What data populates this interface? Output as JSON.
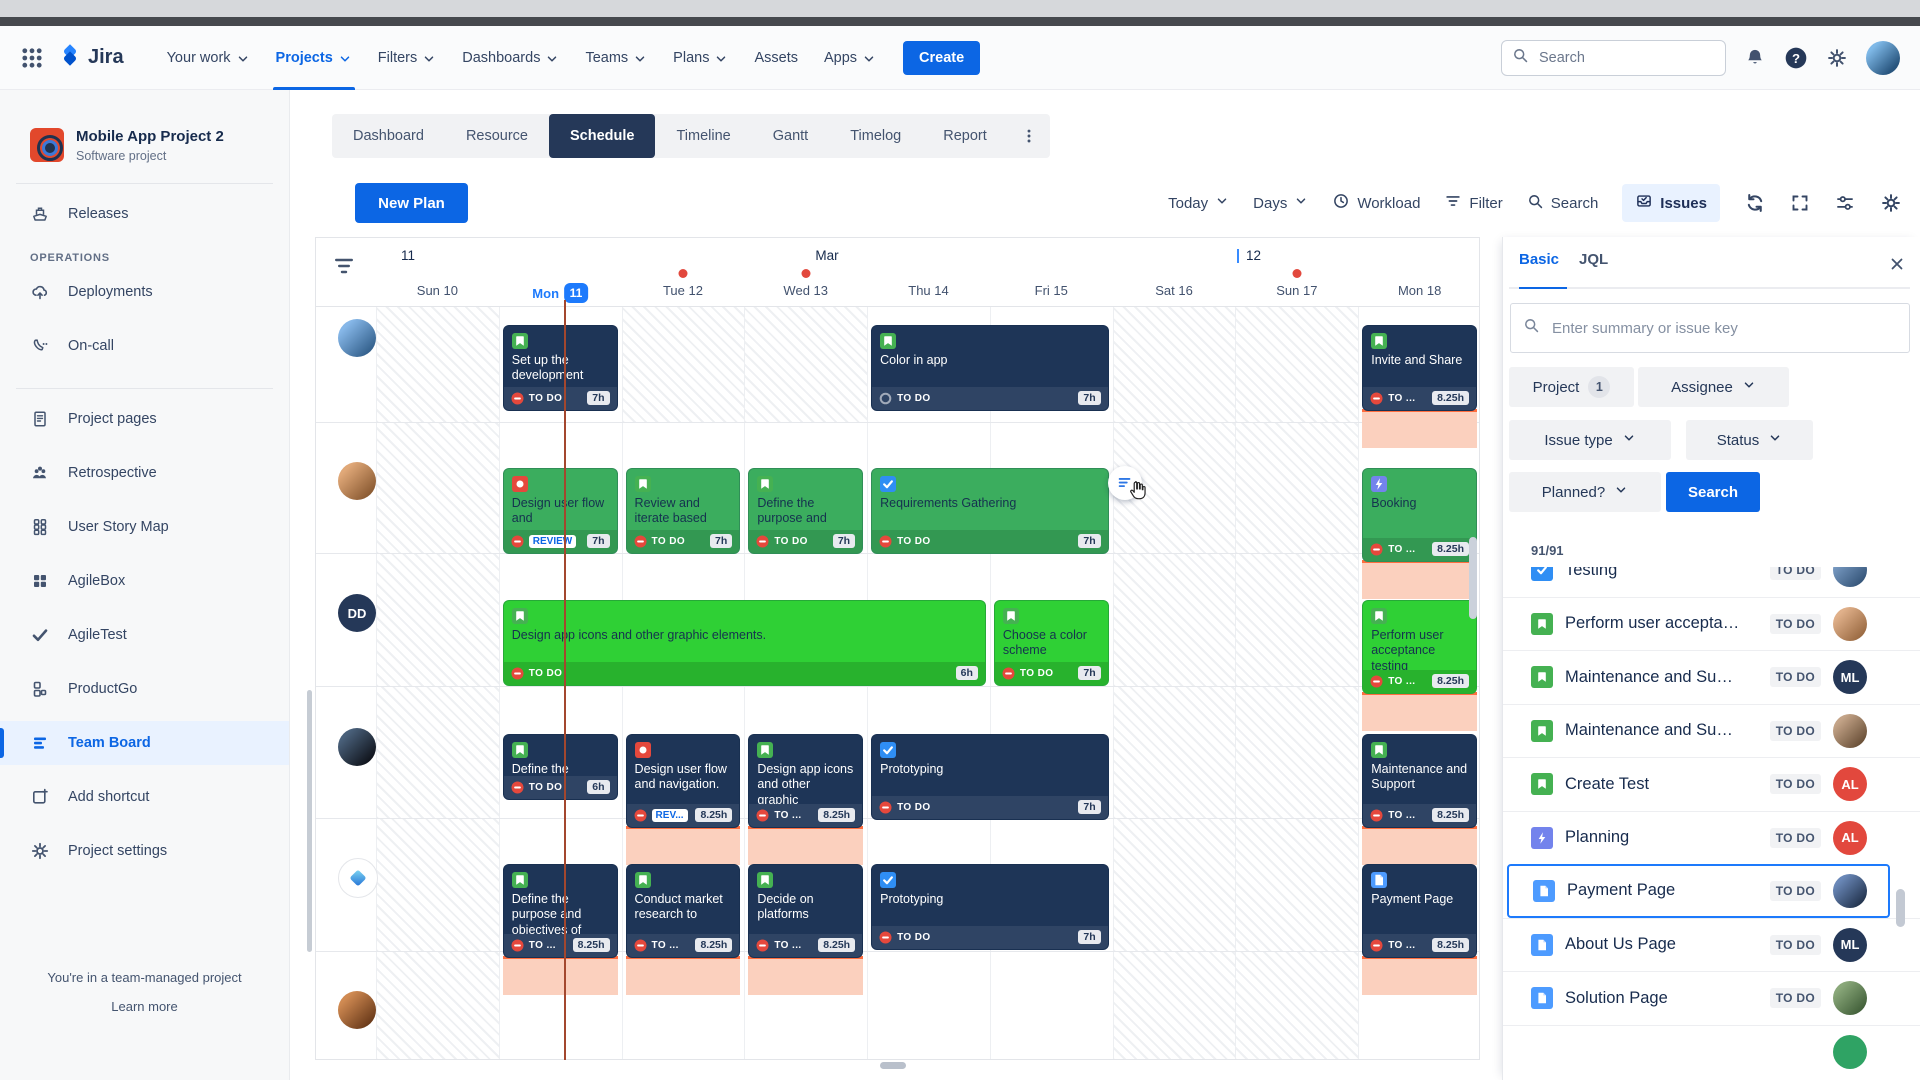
{
  "topnav": {
    "logo": "Jira",
    "items": [
      {
        "label": "Your work",
        "chevron": true
      },
      {
        "label": "Projects",
        "chevron": true,
        "active": true
      },
      {
        "label": "Filters",
        "chevron": true
      },
      {
        "label": "Dashboards",
        "chevron": true
      },
      {
        "label": "Teams",
        "chevron": true
      },
      {
        "label": "Plans",
        "chevron": true
      },
      {
        "label": "Assets",
        "chevron": false
      },
      {
        "label": "Apps",
        "chevron": true
      }
    ],
    "create_label": "Create",
    "search_placeholder": "Search"
  },
  "sidebar": {
    "project_name": "Mobile App Project 2",
    "project_type": "Software project",
    "groups": [
      {
        "items": [
          {
            "icon": "ship",
            "label": "Releases"
          }
        ]
      },
      {
        "heading": "OPERATIONS",
        "items": [
          {
            "icon": "cloudup",
            "label": "Deployments"
          },
          {
            "icon": "phone",
            "label": "On-call"
          }
        ]
      },
      {
        "items": [
          {
            "icon": "doc",
            "label": "Project pages"
          },
          {
            "icon": "people",
            "label": "Retrospective"
          },
          {
            "icon": "griddots",
            "label": "User Story Map"
          },
          {
            "icon": "squares",
            "label": "AgileBox"
          },
          {
            "icon": "check",
            "label": "AgileTest"
          },
          {
            "icon": "boxes",
            "label": "ProductGo"
          },
          {
            "icon": "board",
            "label": "Team Board",
            "selected": true
          },
          {
            "icon": "add",
            "label": "Add shortcut"
          },
          {
            "icon": "gear",
            "label": "Project settings"
          }
        ]
      }
    ],
    "footer_note": "You're in a team-managed project",
    "footer_link": "Learn more"
  },
  "view_tabs": {
    "items": [
      "Dashboard",
      "Resource",
      "Schedule",
      "Timeline",
      "Gantt",
      "Timelog",
      "Report"
    ],
    "active": "Schedule"
  },
  "toolbar": {
    "new_plan": "New Plan",
    "today": "Today",
    "days": "Days",
    "workload": "Workload",
    "filter": "Filter",
    "search": "Search",
    "issues": "Issues"
  },
  "timeline": {
    "week_left": "11",
    "month": "Mar",
    "week_right": "12",
    "days": [
      {
        "label": "Sun 10",
        "weekend": true
      },
      {
        "label": "Mon",
        "badge": "11",
        "today": true
      },
      {
        "label": "Tue 12",
        "dot": true
      },
      {
        "label": "Wed 13",
        "dot": true
      },
      {
        "label": "Thu 14"
      },
      {
        "label": "Fri 15"
      },
      {
        "label": "Sat 16",
        "weekend": true
      },
      {
        "label": "Sun 17",
        "weekend": true,
        "dot": true
      },
      {
        "label": "Mon 18"
      }
    ]
  },
  "board": {
    "rows": [
      {
        "avatar": {
          "kind": "photo",
          "grad": [
            "#86b7e8",
            "#33608c"
          ]
        },
        "hatch": [
          0,
          2,
          3,
          6,
          7
        ],
        "cards": [
          {
            "day": 1,
            "span": 1,
            "color": "navy",
            "type": "story",
            "title": "Set up the development",
            "status": "TO DO",
            "prio": "blocked",
            "hours": "7h"
          },
          {
            "day": 4,
            "span": 2,
            "color": "navy",
            "type": "story",
            "title": "Color in app",
            "status": "TO DO",
            "prio": "open",
            "hours": "7h"
          },
          {
            "day": 8,
            "span": 1,
            "color": "navy",
            "type": "story",
            "title": "Invite and Share",
            "status": "TO ...",
            "prio": "blocked",
            "hours": "8.25h",
            "overdue": true
          }
        ]
      },
      {
        "avatar": {
          "kind": "photo",
          "grad": [
            "#e0a878",
            "#8a5a32"
          ]
        },
        "hatch": [
          0,
          6,
          7
        ],
        "hover_control_day": 6,
        "cards": [
          {
            "day": 1,
            "span": 1,
            "color": "green",
            "type": "bug",
            "title": "Design user flow and",
            "status": "REVIEW",
            "chip": true,
            "prio": "blocked",
            "hours": "7h"
          },
          {
            "day": 2,
            "span": 1,
            "color": "green",
            "type": "story",
            "title": "Review and iterate based",
            "status": "TO DO",
            "prio": "blocked",
            "hours": "7h"
          },
          {
            "day": 3,
            "span": 1,
            "color": "green",
            "type": "story",
            "title": "Define the purpose and",
            "status": "TO DO",
            "prio": "blocked",
            "hours": "7h"
          },
          {
            "day": 4,
            "span": 2,
            "color": "green",
            "type": "task",
            "title": "Requirements Gathering",
            "status": "TO DO",
            "prio": "blocked",
            "hours": "7h"
          },
          {
            "day": 8,
            "span": 1,
            "color": "green",
            "type": "planning",
            "title": "Booking",
            "status": "TO ...",
            "prio": "blocked",
            "hours": "8.25h",
            "overdue": true,
            "tall": true
          }
        ]
      },
      {
        "avatar": {
          "kind": "initials",
          "text": "DD",
          "bg": "#253858"
        },
        "hatch": [
          0,
          6,
          7
        ],
        "cards": [
          {
            "day": 1,
            "span": 4,
            "color": "bright",
            "type": "story",
            "title": "Design app icons and other graphic elements.",
            "status": "TO DO",
            "prio": "blocked",
            "hours": "6h"
          },
          {
            "day": 5,
            "span": 1,
            "color": "bright",
            "type": "story",
            "title": "Choose a color scheme",
            "status": "TO DO",
            "prio": "blocked",
            "hours": "7h"
          },
          {
            "day": 8,
            "span": 1,
            "color": "bright",
            "type": "story",
            "title": "Perform user acceptance testing",
            "status": "TO ...",
            "prio": "blocked",
            "hours": "8.25h",
            "overdue": true,
            "tall": true
          }
        ]
      },
      {
        "avatar": {
          "kind": "photo",
          "grad": [
            "#49607a",
            "#10141c"
          ]
        },
        "hatch": [
          0,
          6,
          7
        ],
        "cards": [
          {
            "day": 1,
            "span": 1,
            "color": "navy",
            "type": "story",
            "title": "Define the",
            "status": "TO DO",
            "prio": "blocked",
            "hours": "6h",
            "short": true
          },
          {
            "day": 2,
            "span": 1,
            "color": "navy",
            "type": "bug",
            "title": "Design user flow and navigation.",
            "status": "REV...",
            "chip": true,
            "prio": "blocked",
            "hours": "8.25h",
            "overdue": true,
            "tall": true
          },
          {
            "day": 3,
            "span": 1,
            "color": "navy",
            "type": "story",
            "title": "Design app icons and other graphic",
            "status": "TO ...",
            "prio": "blocked",
            "hours": "8.25h",
            "overdue": true,
            "tall": true
          },
          {
            "day": 4,
            "span": 2,
            "color": "navy",
            "type": "task",
            "title": "Prototyping",
            "status": "TO DO",
            "prio": "blocked",
            "hours": "7h"
          },
          {
            "day": 8,
            "span": 1,
            "color": "navy",
            "type": "story",
            "title": "Maintenance and Support",
            "status": "TO ...",
            "prio": "blocked",
            "hours": "8.25h",
            "overdue": true,
            "tall": true
          }
        ]
      },
      {
        "avatar": {
          "kind": "diamond"
        },
        "hatch": [
          0,
          6,
          7
        ],
        "cards": [
          {
            "day": 1,
            "span": 1,
            "color": "navy",
            "type": "story",
            "title": "Define the purpose and objectives of",
            "status": "TO ...",
            "prio": "blocked",
            "hours": "8.25h",
            "overdue": true,
            "tall": true
          },
          {
            "day": 2,
            "span": 1,
            "color": "navy",
            "type": "story",
            "title": "Conduct market research to",
            "status": "TO ...",
            "prio": "blocked",
            "hours": "8.25h",
            "overdue": true,
            "tall": true
          },
          {
            "day": 3,
            "span": 1,
            "color": "navy",
            "type": "story",
            "title": "Decide on platforms",
            "status": "TO ...",
            "prio": "blocked",
            "hours": "8.25h",
            "overdue": true,
            "tall": true
          },
          {
            "day": 4,
            "span": 2,
            "color": "navy",
            "type": "task",
            "title": "Prototyping",
            "status": "TO DO",
            "prio": "blocked",
            "hours": "7h"
          },
          {
            "day": 8,
            "span": 1,
            "color": "navy",
            "type": "page",
            "title": "Payment Page",
            "status": "TO ...",
            "prio": "blocked",
            "hours": "8.25h",
            "overdue": true,
            "tall": true
          }
        ]
      },
      {
        "avatar": {
          "kind": "photo",
          "grad": [
            "#d08a52",
            "#6a3a1a"
          ]
        },
        "hatch": [
          0,
          6,
          7
        ],
        "cards": []
      }
    ]
  },
  "panel": {
    "tab_basic": "Basic",
    "tab_jql": "JQL",
    "search_placeholder": "Enter summary or issue key",
    "filters": {
      "project": "Project",
      "project_count": "1",
      "assignee": "Assignee",
      "issue_type": "Issue type",
      "status": "Status",
      "planned": "Planned?",
      "search_btn": "Search"
    },
    "count": "91/91",
    "items": [
      {
        "type": "task",
        "title": "Testing",
        "status": "TO DO",
        "avatar": {
          "kind": "photo",
          "grad": [
            "#7a9cc4",
            "#36567a"
          ]
        }
      },
      {
        "type": "story",
        "title": "Perform user accepta…",
        "status": "TO DO",
        "avatar": {
          "kind": "photo",
          "grad": [
            "#e0b08a",
            "#9a6a42"
          ]
        }
      },
      {
        "type": "story",
        "title": "Maintenance and Su…",
        "status": "TO DO",
        "avatar": {
          "kind": "initials",
          "text": "ML",
          "bg": "#253858"
        }
      },
      {
        "type": "story",
        "title": "Maintenance and Su…",
        "status": "TO DO",
        "avatar": {
          "kind": "photo",
          "grad": [
            "#c4a488",
            "#6a5038"
          ]
        }
      },
      {
        "type": "story",
        "title": "Create Test",
        "status": "TO DO",
        "avatar": {
          "kind": "initials",
          "text": "AL",
          "bg": "#E2483D"
        }
      },
      {
        "type": "planning",
        "title": "Planning",
        "status": "TO DO",
        "avatar": {
          "kind": "initials",
          "text": "AL",
          "bg": "#E2483D"
        }
      },
      {
        "type": "page",
        "title": "Payment Page",
        "status": "TO DO",
        "selected": true,
        "avatar": {
          "kind": "photo",
          "grad": [
            "#6a88b8",
            "#23344e"
          ]
        }
      },
      {
        "type": "page",
        "title": "About Us Page",
        "status": "TO DO",
        "avatar": {
          "kind": "initials",
          "text": "ML",
          "bg": "#253858"
        }
      },
      {
        "type": "page",
        "title": "Solution Page",
        "status": "TO DO",
        "avatar": {
          "kind": "photo",
          "grad": [
            "#8aa87a",
            "#42603a"
          ]
        }
      },
      {
        "type": "none",
        "title": "",
        "status": "",
        "avatar": {
          "kind": "initials",
          "text": "",
          "bg": "#2FA364"
        }
      }
    ]
  }
}
